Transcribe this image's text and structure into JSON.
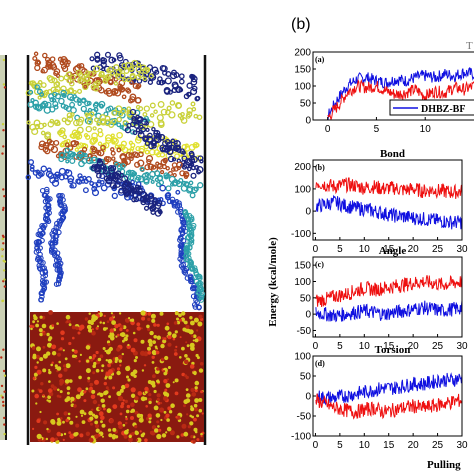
{
  "figure": {
    "panel_label": "(b)",
    "cut_title_fragment": "T",
    "ylabel": "Energy (kcal/mole)",
    "xlabel": "Pulling",
    "legend_text": "DHBZ-BF",
    "colors": {
      "series_a": "#1010e0",
      "series_b": "#ee1010"
    },
    "left_image": "molecular dynamics snapshot: fragmented graphene flakes (yellow, orange, cyan, navy, blue) above a red/yellow polymer slab"
  },
  "chart_data": [
    {
      "type": "line",
      "label": "(a)",
      "title": "",
      "yticks": [
        "200",
        "150",
        "100",
        "50",
        "0"
      ],
      "xticks": [
        "0",
        "5",
        "10"
      ],
      "xlim": [
        -1.5,
        15
      ],
      "ylim": [
        0,
        200
      ],
      "series": [
        {
          "name": "DHBZ-BF",
          "color": "#1010e0",
          "x": [
            0,
            1,
            2,
            3,
            4,
            5,
            6,
            7,
            8,
            9,
            10,
            11,
            12,
            13,
            14,
            15
          ],
          "values": [
            10,
            60,
            100,
            120,
            125,
            115,
            110,
            120,
            115,
            125,
            130,
            125,
            135,
            130,
            140,
            135
          ]
        },
        {
          "color": "#ee1010",
          "x": [
            0,
            1,
            2,
            3,
            4,
            5,
            6,
            7,
            8,
            9,
            10,
            11,
            12,
            13,
            14,
            15
          ],
          "values": [
            5,
            40,
            80,
            100,
            95,
            100,
            85,
            75,
            80,
            90,
            70,
            85,
            80,
            95,
            90,
            100
          ]
        }
      ]
    },
    {
      "type": "line",
      "label": "(b)",
      "title": "Bond",
      "yticks": [
        "200",
        "100",
        "0",
        "-100"
      ],
      "xticks": [
        "0",
        "5",
        "10",
        "15",
        "20",
        "25",
        "30"
      ],
      "xlim": [
        -0.5,
        30
      ],
      "ylim": [
        -130,
        230
      ],
      "series": [
        {
          "color": "#ee1010",
          "x": [
            0,
            2,
            4,
            6,
            8,
            10,
            12,
            14,
            16,
            18,
            20,
            22,
            24,
            26,
            28,
            30
          ],
          "values": [
            130,
            120,
            110,
            120,
            115,
            105,
            110,
            100,
            105,
            95,
            100,
            90,
            95,
            90,
            85,
            90
          ]
        },
        {
          "color": "#1010e0",
          "x": [
            0,
            2,
            4,
            6,
            8,
            10,
            12,
            14,
            16,
            18,
            20,
            22,
            24,
            26,
            28,
            30
          ],
          "values": [
            20,
            30,
            40,
            25,
            15,
            10,
            0,
            -10,
            -20,
            -25,
            -30,
            -35,
            -40,
            -45,
            -50,
            -50
          ]
        }
      ]
    },
    {
      "type": "line",
      "label": "(c)",
      "title": "Angle",
      "yticks": [
        "150",
        "100",
        "50",
        "0",
        "-50"
      ],
      "xticks": [
        "0",
        "5",
        "10",
        "15",
        "20",
        "25",
        "30"
      ],
      "xlim": [
        -0.5,
        30
      ],
      "ylim": [
        -70,
        175
      ],
      "series": [
        {
          "color": "#ee1010",
          "x": [
            0,
            2,
            4,
            6,
            8,
            10,
            12,
            14,
            16,
            18,
            20,
            22,
            24,
            26,
            28,
            30
          ],
          "values": [
            40,
            45,
            55,
            60,
            70,
            80,
            75,
            80,
            85,
            90,
            95,
            100,
            95,
            90,
            95,
            100
          ]
        },
        {
          "color": "#1010e0",
          "x": [
            0,
            2,
            4,
            6,
            8,
            10,
            12,
            14,
            16,
            18,
            20,
            22,
            24,
            26,
            28,
            30
          ],
          "values": [
            5,
            0,
            -5,
            0,
            5,
            10,
            5,
            0,
            5,
            10,
            15,
            20,
            15,
            10,
            15,
            20
          ]
        }
      ]
    },
    {
      "type": "line",
      "label": "(d)",
      "title": "Torsion",
      "yticks": [
        "100",
        "50",
        "0",
        "-50",
        "-100"
      ],
      "xticks": [
        "0",
        "5",
        "10",
        "15",
        "20",
        "25",
        "30"
      ],
      "xlim": [
        -0.5,
        30
      ],
      "ylim": [
        -100,
        100
      ],
      "series": [
        {
          "color": "#1010e0",
          "x": [
            0,
            2,
            4,
            6,
            8,
            10,
            12,
            14,
            16,
            18,
            20,
            22,
            24,
            26,
            28,
            30
          ],
          "values": [
            0,
            -5,
            -5,
            0,
            5,
            10,
            15,
            20,
            20,
            25,
            30,
            30,
            35,
            40,
            40,
            45
          ]
        },
        {
          "color": "#ee1010",
          "x": [
            0,
            2,
            4,
            6,
            8,
            10,
            12,
            14,
            16,
            18,
            20,
            22,
            24,
            26,
            28,
            30
          ],
          "values": [
            -10,
            -20,
            -30,
            -35,
            -40,
            -35,
            -30,
            -40,
            -35,
            -30,
            -25,
            -30,
            -25,
            -20,
            -15,
            -10
          ]
        }
      ]
    }
  ]
}
